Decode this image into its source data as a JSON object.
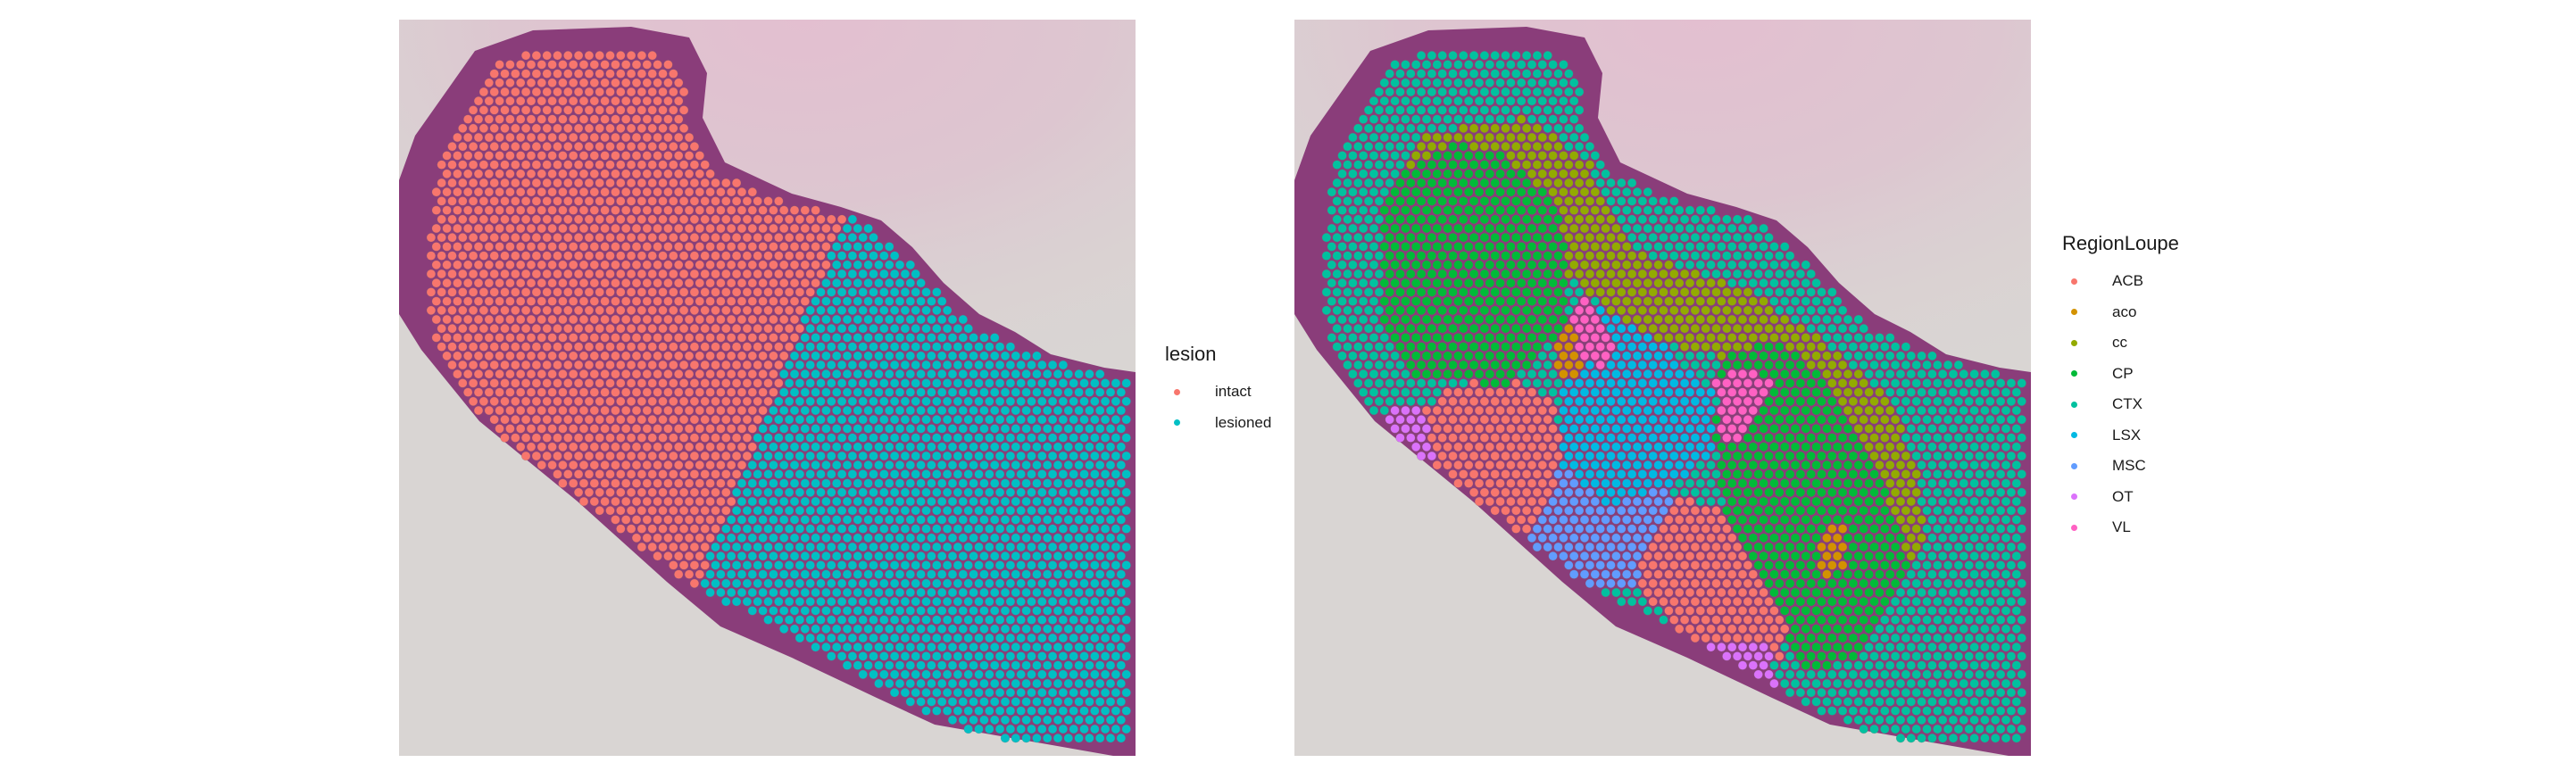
{
  "panels": [
    {
      "legend_title": "lesion",
      "categories": [
        {
          "label": "intact",
          "color": "#F8766D"
        },
        {
          "label": "lesioned",
          "color": "#00BFC4"
        }
      ]
    },
    {
      "legend_title": "RegionLoupe",
      "categories": [
        {
          "label": "ACB",
          "color": "#F8766D"
        },
        {
          "label": "aco",
          "color": "#D39200"
        },
        {
          "label": "cc",
          "color": "#93AA00"
        },
        {
          "label": "CP",
          "color": "#00BA38"
        },
        {
          "label": "CTX",
          "color": "#00C19F"
        },
        {
          "label": "LSX",
          "color": "#00B9E3"
        },
        {
          "label": "MSC",
          "color": "#619CFF"
        },
        {
          "label": "OT",
          "color": "#DB72FB"
        },
        {
          "label": "VL",
          "color": "#FF61C3"
        }
      ]
    }
  ],
  "background": {
    "tissue": "#8a3d7a",
    "glass": "#d9d5d3",
    "stain_pink": "#e3bfd0"
  }
}
